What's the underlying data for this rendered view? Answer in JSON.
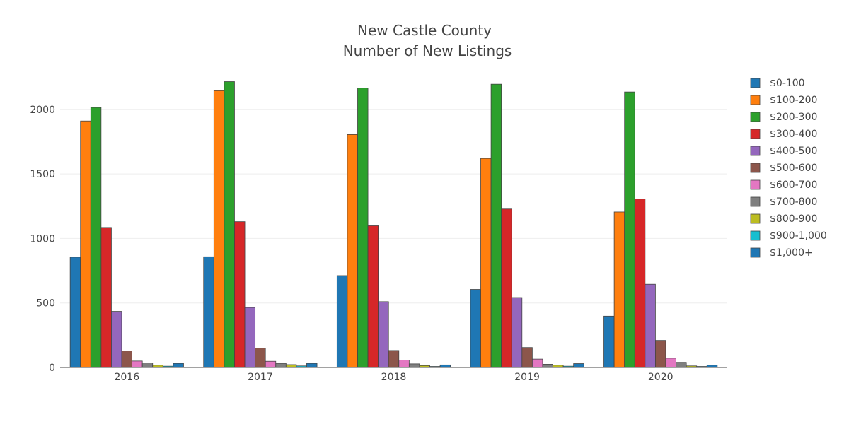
{
  "chart_data": {
    "type": "bar",
    "title": [
      "New Castle County",
      "Number of New Listings"
    ],
    "xlabel": "",
    "ylabel": "",
    "categories": [
      "2016",
      "2017",
      "2018",
      "2019",
      "2020"
    ],
    "ylim": [
      0,
      2300
    ],
    "yticks": [
      0,
      500,
      1000,
      1500,
      2000
    ],
    "yticklabels": [
      "0",
      "500",
      "1000",
      "1500",
      "2000"
    ],
    "legend_position": "right",
    "series": [
      {
        "name": "$0-100",
        "color": "#1f77b4",
        "values": [
          855,
          858,
          712,
          605,
          398
        ]
      },
      {
        "name": "$100-200",
        "color": "#ff7f0e",
        "values": [
          1910,
          2145,
          1805,
          1620,
          1205
        ]
      },
      {
        "name": "$200-300",
        "color": "#2ca02c",
        "values": [
          2015,
          2215,
          2165,
          2195,
          2135
        ]
      },
      {
        "name": "$300-400",
        "color": "#d62728",
        "values": [
          1085,
          1130,
          1098,
          1228,
          1305
        ]
      },
      {
        "name": "$400-500",
        "color": "#9467bd",
        "values": [
          435,
          465,
          510,
          542,
          645
        ]
      },
      {
        "name": "$500-600",
        "color": "#8c564b",
        "values": [
          128,
          150,
          132,
          155,
          210
        ]
      },
      {
        "name": "$600-700",
        "color": "#e377c2",
        "values": [
          50,
          48,
          58,
          65,
          72
        ]
      },
      {
        "name": "$700-800",
        "color": "#7f7f7f",
        "values": [
          35,
          32,
          28,
          25,
          40
        ]
      },
      {
        "name": "$800-900",
        "color": "#bcbd22",
        "values": [
          18,
          22,
          15,
          18,
          12
        ]
      },
      {
        "name": "$900-1,000",
        "color": "#17becf",
        "values": [
          10,
          12,
          8,
          10,
          8
        ]
      },
      {
        "name": "$1,000+",
        "color": "#1f77b4",
        "values": [
          32,
          32,
          20,
          30,
          18
        ]
      }
    ]
  }
}
